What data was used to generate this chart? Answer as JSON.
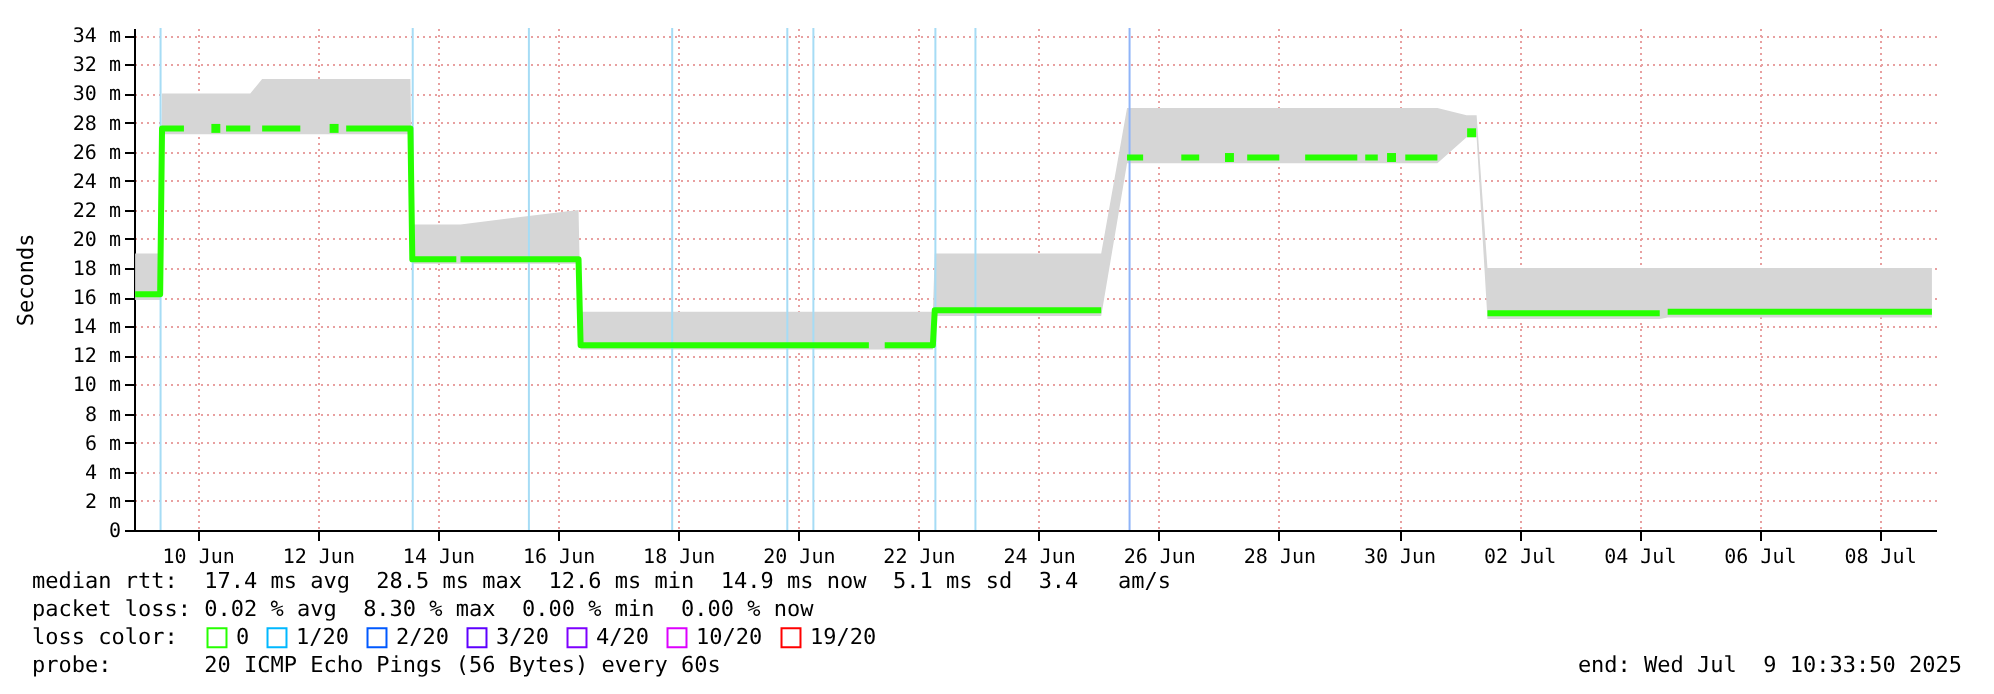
{
  "chart_data": {
    "type": "line",
    "ylabel": "Seconds",
    "legend_title": "loss color:",
    "legend": "bottom",
    "marker": "none",
    "line_style": "solid",
    "grid": true,
    "xlim": [
      "2025-06-09T10:33",
      "2025-07-09T10:33"
    ],
    "xticks": [
      {
        "value": "2025-06-10T12:00",
        "label": "10 Jun"
      },
      {
        "value": "2025-06-12T12:00",
        "label": "12 Jun"
      },
      {
        "value": "2025-06-14T12:00",
        "label": "14 Jun"
      },
      {
        "value": "2025-06-16T12:00",
        "label": "16 Jun"
      },
      {
        "value": "2025-06-18T12:00",
        "label": "18 Jun"
      },
      {
        "value": "2025-06-20T12:00",
        "label": "20 Jun"
      },
      {
        "value": "2025-06-22T12:00",
        "label": "22 Jun"
      },
      {
        "value": "2025-06-24T12:00",
        "label": "24 Jun"
      },
      {
        "value": "2025-06-26T12:00",
        "label": "26 Jun"
      },
      {
        "value": "2025-06-28T12:00",
        "label": "28 Jun"
      },
      {
        "value": "2025-06-30T12:00",
        "label": "30 Jun"
      },
      {
        "value": "2025-07-02T12:00",
        "label": "02 Jul"
      },
      {
        "value": "2025-07-04T12:00",
        "label": "04 Jul"
      },
      {
        "value": "2025-07-06T12:00",
        "label": "06 Jul"
      },
      {
        "value": "2025-07-08T12:00",
        "label": "08 Jul"
      }
    ],
    "ylim": [
      0,
      34.5
    ],
    "yticks": [
      {
        "value": 0,
        "label": "0"
      },
      {
        "value": 2,
        "label": "2 m"
      },
      {
        "value": 4,
        "label": "4 m"
      },
      {
        "value": 6,
        "label": "6 m"
      },
      {
        "value": 8,
        "label": "8 m"
      },
      {
        "value": 10,
        "label": "10 m"
      },
      {
        "value": 12,
        "label": "12 m"
      },
      {
        "value": 14,
        "label": "14 m"
      },
      {
        "value": 16,
        "label": "16 m"
      },
      {
        "value": 18,
        "label": "18 m"
      },
      {
        "value": 20,
        "label": "20 m"
      },
      {
        "value": 22,
        "label": "22 m"
      },
      {
        "value": 24,
        "label": "24 m"
      },
      {
        "value": 26,
        "label": "26 m"
      },
      {
        "value": 28,
        "label": "28 m"
      },
      {
        "value": 30,
        "label": "30 m"
      },
      {
        "value": 32,
        "label": "32 m"
      },
      {
        "value": 34,
        "label": "34 m"
      }
    ],
    "x": [
      "2025-06-09T11:00",
      "2025-06-09T21:00",
      "2025-06-09T21:45",
      "2025-06-10T06:30",
      "2025-06-10T13:00",
      "2025-06-10T17:30",
      "2025-06-10T21:00",
      "2025-06-10T22:00",
      "2025-06-10T23:20",
      "2025-06-11T09:00",
      "2025-06-11T11:00",
      "2025-06-11T13:45",
      "2025-06-12T05:00",
      "2025-06-12T10:00",
      "2025-06-12T16:45",
      "2025-06-12T20:15",
      "2025-06-12T21:00",
      "2025-06-12T23:20",
      "2025-06-14T01:00",
      "2025-06-14T01:45",
      "2025-06-14T19:20",
      "2025-06-14T20:10",
      "2025-06-14T21:00",
      "2025-06-16T20:10",
      "2025-06-16T21:00",
      "2025-06-21T16:10",
      "2025-06-21T19:00",
      "2025-06-21T22:30",
      "2025-06-22T17:45",
      "2025-06-22T18:30",
      "2025-06-25T13:00",
      "2025-06-25T18:00",
      "2025-06-25T23:20",
      "2025-06-26T05:45",
      "2025-06-26T13:00",
      "2025-06-26T21:00",
      "2025-06-27T04:10",
      "2025-06-27T10:00",
      "2025-06-27T14:30",
      "2025-06-27T18:00",
      "2025-06-27T20:00",
      "2025-06-27T23:20",
      "2025-06-28T12:10",
      "2025-06-28T17:00",
      "2025-06-28T22:30",
      "2025-06-29T19:20",
      "2025-06-29T21:20",
      "2025-06-29T22:30",
      "2025-06-30T03:30",
      "2025-06-30T05:00",
      "2025-06-30T07:00",
      "2025-06-30T11:00",
      "2025-06-30T12:00",
      "2025-06-30T14:30",
      "2025-07-01T03:20",
      "2025-07-01T10:00",
      "2025-07-01T15:00",
      "2025-07-01T19:00",
      "2025-07-01T21:00",
      "2025-07-01T23:20",
      "2025-07-04T20:10",
      "2025-07-04T21:45",
      "2025-07-04T23:20",
      "2025-07-09T08:55"
    ],
    "series": [
      {
        "name": "0",
        "color": "#26ff00",
        "values": [
          16.2,
          16.2,
          27.6,
          27.6,
          null,
          null,
          null,
          null,
          27.6,
          27.6,
          null,
          27.6,
          27.6,
          null,
          null,
          null,
          null,
          27.6,
          27.6,
          18.6,
          18.6,
          null,
          18.6,
          18.6,
          12.7,
          12.7,
          null,
          12.7,
          12.7,
          15.1,
          15.1,
          null,
          25.6,
          25.6,
          null,
          25.6,
          25.6,
          null,
          null,
          null,
          null,
          25.6,
          25.6,
          null,
          25.6,
          25.6,
          null,
          25.6,
          25.6,
          null,
          null,
          null,
          null,
          25.6,
          25.6,
          null,
          null,
          null,
          null,
          14.9,
          14.9,
          null,
          15.0,
          15.0
        ],
        "lower": [
          15.8,
          15.8,
          27.2,
          27.2,
          null,
          27.2,
          27.2,
          null,
          27.2,
          27.2,
          null,
          27.2,
          27.2,
          null,
          27.2,
          27.2,
          null,
          27.2,
          27.2,
          18.3,
          18.3,
          null,
          18.3,
          18.3,
          12.4,
          12.4,
          null,
          12.4,
          12.4,
          14.7,
          14.7,
          null,
          25.2,
          25.2,
          null,
          25.2,
          25.2,
          null,
          25.2,
          25.2,
          null,
          25.2,
          25.2,
          null,
          25.2,
          25.2,
          null,
          25.2,
          25.2,
          null,
          25.2,
          25.2,
          null,
          25.2,
          25.2,
          null,
          27.0,
          27.0,
          null,
          14.5,
          14.5,
          null,
          14.6,
          14.6
        ],
        "upper": [
          19,
          19,
          30,
          30,
          null,
          30,
          30,
          null,
          30,
          30,
          null,
          31,
          31,
          null,
          31,
          31,
          null,
          31,
          31,
          21,
          21,
          null,
          21,
          22,
          15,
          15,
          null,
          15,
          15,
          19,
          19,
          null,
          29,
          29,
          null,
          29,
          29,
          null,
          29,
          29,
          null,
          29,
          29,
          null,
          29,
          29,
          null,
          29,
          29,
          null,
          29,
          29,
          null,
          29,
          29,
          null,
          28.5,
          28.5,
          null,
          18,
          18,
          null,
          18,
          18
        ]
      },
      {
        "type": "scatter",
        "marker": "square",
        "color": "#26ff00",
        "x": [
          "2025-06-10T19:15",
          "2025-06-12T18:30",
          "2025-06-27T16:15",
          "2025-06-30T09:00",
          "2025-07-01T17:00"
        ],
        "values": [
          27.6,
          27.6,
          25.6,
          25.6,
          27.3
        ]
      },
      {
        "name": "1/20",
        "color": "#00b8ff",
        "values": [
          null,
          null,
          null,
          null,
          null,
          null,
          null,
          null,
          null,
          null,
          null,
          null,
          null,
          null,
          null,
          null,
          null,
          null,
          null,
          null,
          null,
          null,
          null,
          null,
          null,
          null,
          null,
          null,
          null,
          null,
          null,
          null,
          null,
          null,
          null,
          null,
          null,
          null,
          null,
          null,
          null,
          null,
          null,
          null,
          null,
          null,
          null,
          null,
          null,
          null,
          null,
          null,
          null,
          null,
          null,
          null,
          null,
          null,
          null,
          null,
          null,
          null,
          null,
          null
        ]
      },
      {
        "name": "2/20",
        "color": "#0059ff",
        "values": [
          null,
          null,
          null,
          null,
          null,
          null,
          null,
          null,
          null,
          null,
          null,
          null,
          null,
          null,
          null,
          null,
          null,
          null,
          null,
          null,
          null,
          null,
          null,
          null,
          null,
          null,
          null,
          null,
          null,
          null,
          null,
          null,
          null,
          null,
          null,
          null,
          null,
          null,
          null,
          null,
          null,
          null,
          null,
          null,
          null,
          null,
          null,
          null,
          null,
          null,
          null,
          null,
          null,
          null,
          null,
          null,
          null,
          null,
          null,
          null,
          null,
          null,
          null,
          null
        ]
      },
      {
        "name": "3/20",
        "color": "#5e00ff",
        "values": [
          null,
          null,
          null,
          null,
          null,
          null,
          null,
          null,
          null,
          null,
          null,
          null,
          null,
          null,
          null,
          null,
          null,
          null,
          null,
          null,
          null,
          null,
          null,
          null,
          null,
          null,
          null,
          null,
          null,
          null,
          null,
          null,
          null,
          null,
          null,
          null,
          null,
          null,
          null,
          null,
          null,
          null,
          null,
          null,
          null,
          null,
          null,
          null,
          null,
          null,
          null,
          null,
          null,
          null,
          null,
          null,
          null,
          null,
          null,
          null,
          null,
          null,
          null,
          null
        ]
      },
      {
        "name": "4/20",
        "color": "#7e00ff",
        "values": [
          null,
          null,
          null,
          null,
          null,
          null,
          null,
          null,
          null,
          null,
          null,
          null,
          null,
          null,
          null,
          null,
          null,
          null,
          null,
          null,
          null,
          null,
          null,
          null,
          null,
          null,
          null,
          null,
          null,
          null,
          null,
          null,
          null,
          null,
          null,
          null,
          null,
          null,
          null,
          null,
          null,
          null,
          null,
          null,
          null,
          null,
          null,
          null,
          null,
          null,
          null,
          null,
          null,
          null,
          null,
          null,
          null,
          null,
          null,
          null,
          null,
          null,
          null,
          null
        ]
      },
      {
        "name": "10/20",
        "color": "#dd00ff",
        "values": [
          null,
          null,
          null,
          null,
          null,
          null,
          null,
          null,
          null,
          null,
          null,
          null,
          null,
          null,
          null,
          null,
          null,
          null,
          null,
          null,
          null,
          null,
          null,
          null,
          null,
          null,
          null,
          null,
          null,
          null,
          null,
          null,
          null,
          null,
          null,
          null,
          null,
          null,
          null,
          null,
          null,
          null,
          null,
          null,
          null,
          null,
          null,
          null,
          null,
          null,
          null,
          null,
          null,
          null,
          null,
          null,
          null,
          null,
          null,
          null,
          null,
          null,
          null,
          null
        ]
      },
      {
        "name": "19/20",
        "color": "#ff0000",
        "values": [
          null,
          null,
          null,
          null,
          null,
          null,
          null,
          null,
          null,
          null,
          null,
          null,
          null,
          null,
          null,
          null,
          null,
          null,
          null,
          null,
          null,
          null,
          null,
          null,
          null,
          null,
          null,
          null,
          null,
          null,
          null,
          null,
          null,
          null,
          null,
          null,
          null,
          null,
          null,
          null,
          null,
          null,
          null,
          null,
          null,
          null,
          null,
          null,
          null,
          null,
          null,
          null,
          null,
          null,
          null,
          null,
          null,
          null,
          null,
          null,
          null,
          null,
          null,
          null
        ]
      }
    ],
    "ref_lines": [
      {
        "axis": "x",
        "value": "2025-06-09T21:10",
        "color": "#a6dcf5"
      },
      {
        "axis": "x",
        "value": "2025-06-14T01:55",
        "color": "#a6dcf5"
      },
      {
        "axis": "x",
        "value": "2025-06-16T00:20",
        "color": "#a6dcf5"
      },
      {
        "axis": "x",
        "value": "2025-06-18T09:35",
        "color": "#a6dcf5"
      },
      {
        "axis": "x",
        "value": "2025-06-20T07:35",
        "color": "#a6dcf5"
      },
      {
        "axis": "x",
        "value": "2025-06-20T18:00",
        "color": "#a6dcf5"
      },
      {
        "axis": "x",
        "value": "2025-06-22T18:45",
        "color": "#a6dcf5"
      },
      {
        "axis": "x",
        "value": "2025-06-23T10:45",
        "color": "#a6dcf5"
      },
      {
        "axis": "x",
        "value": "2025-06-26T00:20",
        "color": "#8fb4f8"
      }
    ],
    "annotations": [
      "median rtt:  17.4 ms avg  28.5 ms max  12.6 ms min  14.9 ms now  5.1 ms sd  3.4   am/s",
      "packet loss: 0.02 % avg  8.30 % max  0.00 % min  0.00 % now",
      "probe:       20 ICMP Echo Pings (56 Bytes) every 60s",
      "end: Wed Jul  9 10:33:50 2025"
    ]
  }
}
